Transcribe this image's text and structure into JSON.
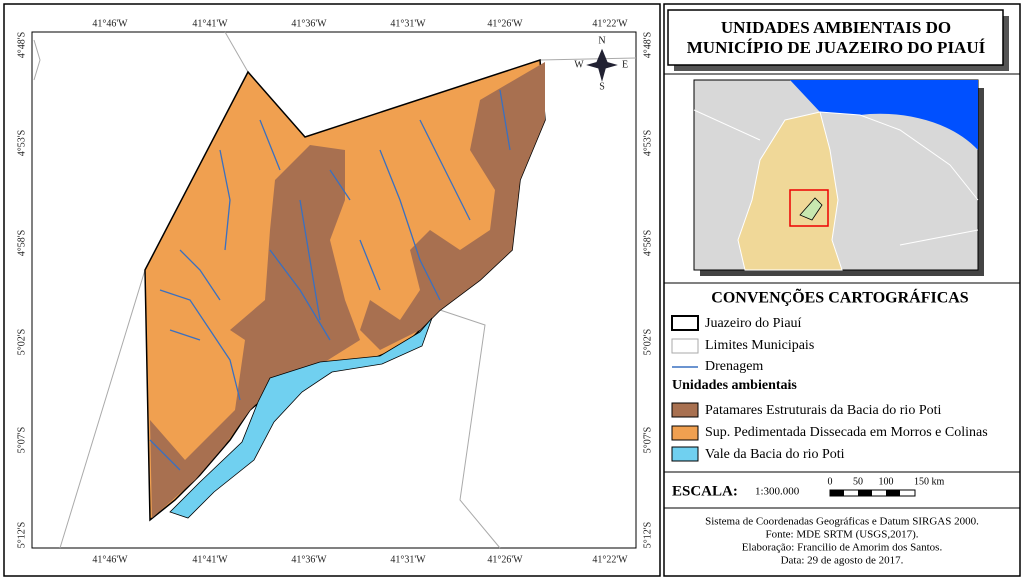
{
  "title": [
    "UNIDADES AMBIENTAIS DO",
    "MUNICÍPIO DE JUAZEIRO DO PIAUÍ"
  ],
  "coords": {
    "top": [
      "41°46'W",
      "41°41'W",
      "41°36'W",
      "41°31'W",
      "41°26'W",
      "41°22'W"
    ],
    "left": [
      "4°48'S",
      "4°53'S",
      "4°58'S",
      "5°02'S",
      "5°07'S",
      "5°12'S"
    ]
  },
  "compass": [
    "N",
    "S",
    "E",
    "W"
  ],
  "legend": {
    "heading": "CONVENÇÕES CARTOGRÁFICAS",
    "items": [
      "Juazeiro do Piauí",
      "Limites Municipais",
      "Drenagem"
    ],
    "subheading": "Unidades ambientais",
    "units": [
      "Patamares Estruturais da Bacia do rio Poti",
      "Sup. Pedimentada Dissecada em Morros e Colinas",
      "Vale da Bacia do rio Poti"
    ]
  },
  "scale": {
    "label": "ESCALA:",
    "ratio": "1:300.000",
    "ticks": [
      "0",
      "50",
      "100",
      "150 km"
    ]
  },
  "credits": [
    "Sistema de Coordenadas Geográficas e Datum SIRGAS 2000.",
    "Fonte: MDE SRTM (USGS,2017).",
    "Elaboração: Francilio de Amorim dos Santos.",
    "Data: 29 de agosto de 2017."
  ]
}
